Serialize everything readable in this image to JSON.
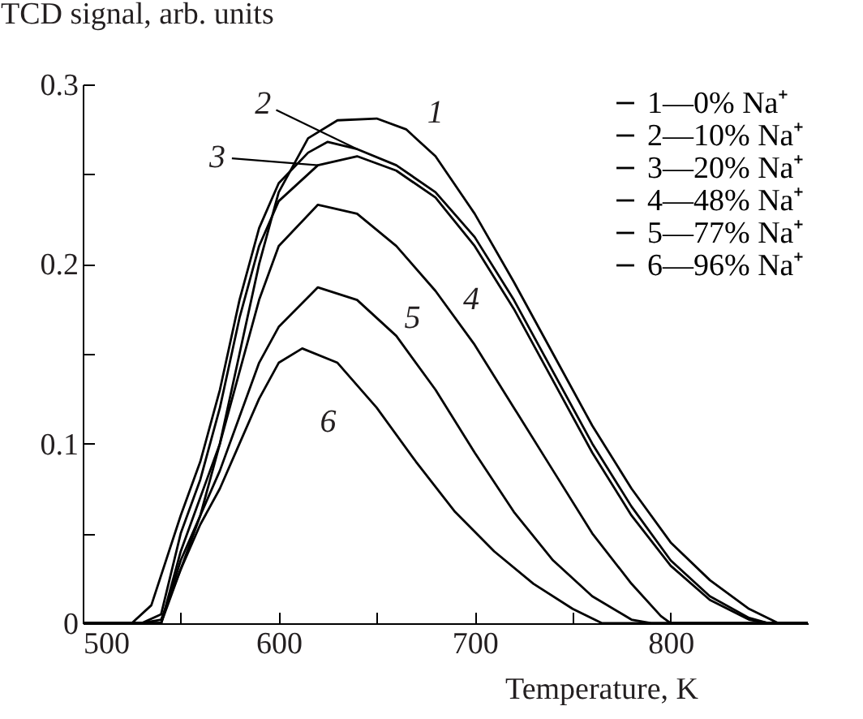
{
  "chart_data": {
    "type": "line",
    "ylabel": "TCD signal, arb. units",
    "xlabel": "Temperature, K",
    "xlim": [
      500,
      870
    ],
    "ylim": [
      0,
      0.3
    ],
    "xticks": [
      500,
      {
        "value": 550,
        "label": null
      },
      600,
      {
        "value": 650,
        "label": null
      },
      700,
      {
        "value": 750,
        "label": null
      },
      800
    ],
    "yticks": [
      0,
      {
        "value": 0.05,
        "label": null
      },
      0.1,
      {
        "value": 0.15,
        "label": null
      },
      0.2,
      {
        "value": 0.25,
        "label": null
      },
      0.3
    ],
    "grid": false,
    "legend": "top right",
    "marker": "none",
    "line_style": "solid",
    "annotations": [
      {
        "text": "1",
        "x": 665,
        "y": 0.275
      },
      {
        "text": "2",
        "x": 640,
        "y": 0.264
      },
      {
        "text": "3",
        "x": 620,
        "y": 0.255
      },
      {
        "text": "4",
        "x": 680,
        "y": 0.185
      },
      {
        "text": "5",
        "x": 660,
        "y": 0.16
      },
      {
        "text": "6",
        "x": 650,
        "y": 0.12
      }
    ],
    "series": [
      {
        "name": "1—0% Na⁺",
        "color": "#000000",
        "x": [
          500,
          530,
          540,
          550,
          560,
          570,
          580,
          590,
          600,
          615,
          630,
          650,
          665,
          680,
          700,
          720,
          740,
          760,
          780,
          800,
          820,
          840,
          855,
          870
        ],
        "values": [
          0,
          0,
          0.002,
          0.03,
          0.06,
          0.1,
          0.15,
          0.2,
          0.24,
          0.27,
          0.28,
          0.281,
          0.275,
          0.26,
          0.228,
          0.19,
          0.15,
          0.11,
          0.075,
          0.045,
          0.024,
          0.008,
          0,
          0
        ]
      },
      {
        "name": "2—10% Na⁺",
        "color": "#000000",
        "x": [
          500,
          525,
          535,
          550,
          560,
          570,
          580,
          590,
          600,
          615,
          625,
          640,
          660,
          680,
          700,
          720,
          740,
          760,
          780,
          800,
          820,
          840,
          850,
          870
        ],
        "values": [
          0,
          0,
          0.01,
          0.06,
          0.09,
          0.13,
          0.18,
          0.22,
          0.245,
          0.262,
          0.268,
          0.264,
          0.255,
          0.24,
          0.215,
          0.18,
          0.14,
          0.1,
          0.065,
          0.035,
          0.015,
          0.003,
          0,
          0
        ]
      },
      {
        "name": "3—20% Na⁺",
        "color": "#000000",
        "x": [
          500,
          530,
          540,
          550,
          560,
          570,
          580,
          590,
          600,
          620,
          640,
          660,
          680,
          700,
          720,
          740,
          760,
          780,
          800,
          820,
          840,
          850,
          870
        ],
        "values": [
          0,
          0,
          0.005,
          0.05,
          0.08,
          0.12,
          0.17,
          0.21,
          0.235,
          0.255,
          0.26,
          0.252,
          0.237,
          0.21,
          0.175,
          0.135,
          0.095,
          0.06,
          0.032,
          0.013,
          0.002,
          0,
          0
        ]
      },
      {
        "name": "4—48% Na⁺",
        "color": "#000000",
        "x": [
          500,
          540,
          550,
          560,
          570,
          580,
          590,
          600,
          620,
          640,
          660,
          680,
          700,
          720,
          740,
          760,
          780,
          795,
          800,
          870
        ],
        "values": [
          0,
          0,
          0.04,
          0.07,
          0.1,
          0.14,
          0.18,
          0.21,
          0.233,
          0.228,
          0.21,
          0.185,
          0.155,
          0.12,
          0.085,
          0.05,
          0.022,
          0.004,
          0,
          0
        ]
      },
      {
        "name": "5—77% Na⁺",
        "color": "#000000",
        "x": [
          500,
          540,
          550,
          560,
          570,
          580,
          590,
          600,
          620,
          640,
          660,
          680,
          700,
          720,
          740,
          760,
          780,
          790,
          870
        ],
        "values": [
          0,
          0,
          0.035,
          0.06,
          0.085,
          0.115,
          0.145,
          0.165,
          0.187,
          0.18,
          0.16,
          0.13,
          0.095,
          0.062,
          0.035,
          0.015,
          0.002,
          0,
          0
        ]
      },
      {
        "name": "6—96% Na⁺",
        "color": "#000000",
        "x": [
          500,
          540,
          550,
          560,
          570,
          580,
          590,
          600,
          612,
          630,
          650,
          670,
          690,
          710,
          730,
          750,
          765,
          870
        ],
        "values": [
          0,
          0,
          0.03,
          0.055,
          0.075,
          0.1,
          0.125,
          0.145,
          0.153,
          0.145,
          0.12,
          0.09,
          0.062,
          0.04,
          0.022,
          0.008,
          0,
          0
        ]
      }
    ]
  }
}
